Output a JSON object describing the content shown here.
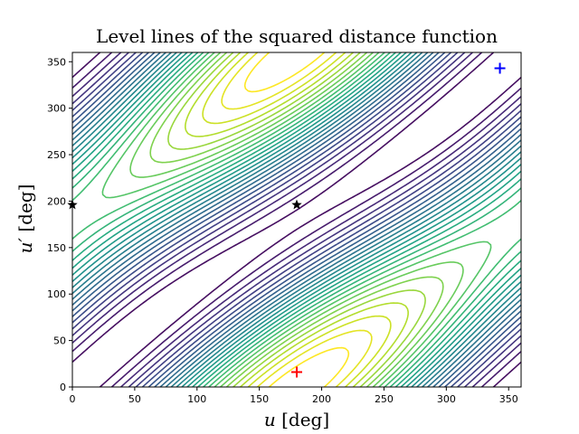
{
  "chart_data": {
    "type": "contour",
    "title": "Level lines of the squared distance function",
    "xlabel": "u [deg]",
    "ylabel": "u′ [deg]",
    "xlim": [
      0,
      360
    ],
    "ylim": [
      0,
      360
    ],
    "xticks": [
      0,
      50,
      100,
      150,
      200,
      250,
      300,
      350
    ],
    "yticks": [
      0,
      50,
      100,
      150,
      200,
      250,
      300,
      350
    ],
    "grid": false,
    "colormap": "viridis",
    "markers": [
      {
        "name": "red-plus",
        "shape": "plus",
        "color": "#ff0000",
        "x": 180,
        "y": 16
      },
      {
        "name": "blue-plus",
        "shape": "plus",
        "color": "#0000ff",
        "x": 343,
        "y": 343
      },
      {
        "name": "star-center",
        "shape": "star",
        "color": "#000000",
        "x": 180,
        "y": 196
      },
      {
        "name": "star-edge",
        "shape": "star",
        "color": "#000000",
        "x": 0,
        "y": 196
      }
    ]
  }
}
